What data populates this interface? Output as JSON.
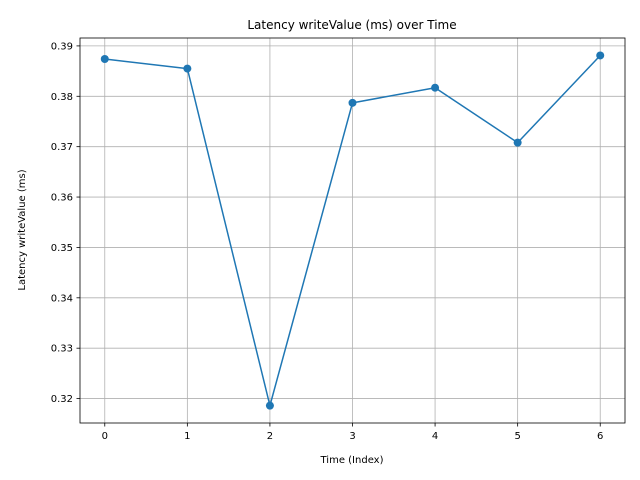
{
  "chart_data": {
    "type": "line",
    "title": "Latency writeValue (ms) over Time",
    "xlabel": "Time (Index)",
    "ylabel": "Latency writeValue (ms)",
    "x": [
      0,
      1,
      2,
      3,
      4,
      5,
      6
    ],
    "series": [
      {
        "values": [
          0.3874,
          0.3855,
          0.3186,
          0.3787,
          0.3817,
          0.3708,
          0.3881
        ],
        "color": "#1f77b4",
        "marker": "circle"
      }
    ],
    "xlim": [
      -0.3,
      6.3
    ],
    "ylim": [
      0.31515,
      0.39157
    ],
    "xticks": [
      0,
      1,
      2,
      3,
      4,
      5,
      6
    ],
    "yticks": [
      0.32,
      0.33,
      0.34,
      0.35,
      0.36,
      0.37,
      0.38,
      0.39
    ],
    "ytick_labels": [
      "0.32",
      "0.33",
      "0.34",
      "0.35",
      "0.36",
      "0.37",
      "0.38",
      "0.39"
    ],
    "grid": true,
    "legend": "none"
  }
}
